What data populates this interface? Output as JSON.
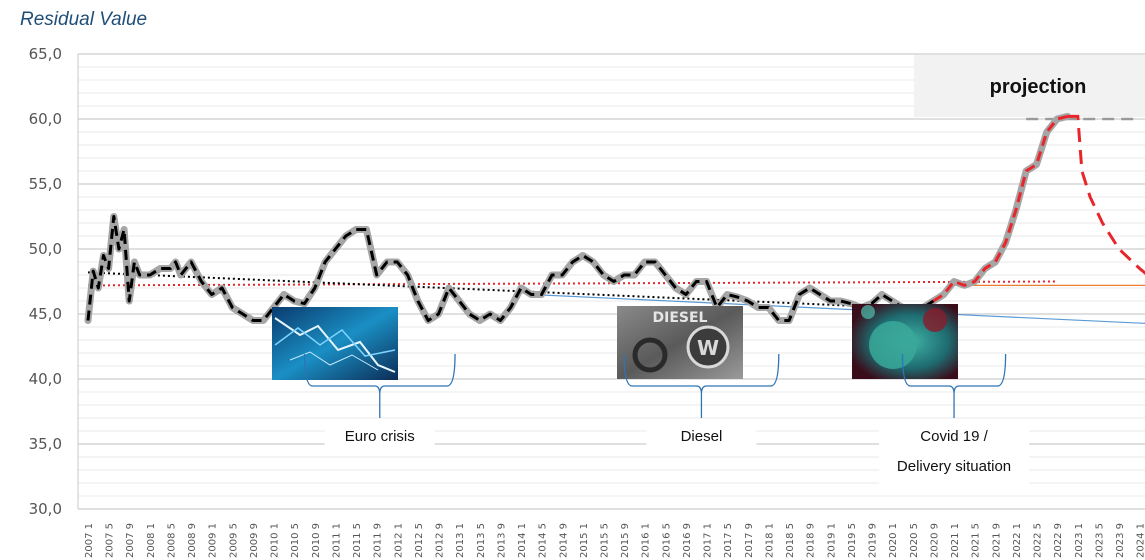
{
  "chart_data": {
    "type": "line",
    "title": "Residual Value",
    "ylim": [
      30,
      65
    ],
    "y_ticks": [
      "65,0",
      "60,0",
      "55,0",
      "50,0",
      "45,0",
      "40,0",
      "35,0",
      "30,0"
    ],
    "y_tick_values": [
      65,
      60,
      55,
      50,
      45,
      40,
      35,
      30
    ],
    "grid": true,
    "x_ticks": [
      "2007 1",
      "2007 5",
      "2007 9",
      "2008 1",
      "2008 5",
      "2008 9",
      "2009 1",
      "2009 5",
      "2009 9",
      "2010 1",
      "2010 5",
      "2010 9",
      "2011 1",
      "2011 5",
      "2011 9",
      "2012 1",
      "2012 5",
      "2012 9",
      "2013 1",
      "2013 5",
      "2013 9",
      "2014 1",
      "2014 5",
      "2014 9",
      "2015 1",
      "2015 5",
      "2015 9",
      "2016 1",
      "2016 5",
      "2016 9",
      "2017 1",
      "2017 5",
      "2017 9",
      "2018 1",
      "2018 5",
      "2018 9",
      "2019 1",
      "2019 5",
      "2019 9",
      "2020 1",
      "2020 5",
      "2020 9",
      "2021 1",
      "2021 5",
      "2021 9",
      "2022 1",
      "2022 5",
      "2022 9",
      "2023 1",
      "2023 5",
      "2023 9",
      "2024 1"
    ],
    "series": [
      {
        "role": "actual",
        "color": "#000000",
        "points": [
          [
            0,
            44.5
          ],
          [
            0.25,
            48.3
          ],
          [
            0.5,
            47.0
          ],
          [
            0.75,
            49.5
          ],
          [
            1,
            48.5
          ],
          [
            1.25,
            52.5
          ],
          [
            1.5,
            50.0
          ],
          [
            1.75,
            51.5
          ],
          [
            2,
            46.0
          ],
          [
            2.25,
            49.0
          ],
          [
            2.5,
            48.0
          ],
          [
            3,
            48.0
          ],
          [
            3.5,
            48.5
          ],
          [
            4,
            48.5
          ],
          [
            4.25,
            49.0
          ],
          [
            4.5,
            48.0
          ],
          [
            5,
            49.0
          ],
          [
            5.5,
            47.5
          ],
          [
            6,
            46.5
          ],
          [
            6.5,
            47.0
          ],
          [
            7,
            45.5
          ],
          [
            7.5,
            45.0
          ],
          [
            8,
            44.5
          ],
          [
            8.5,
            44.5
          ],
          [
            9,
            45.5
          ],
          [
            9.5,
            46.5
          ],
          [
            10,
            46.0
          ],
          [
            10.5,
            45.8
          ],
          [
            11,
            47.0
          ],
          [
            11.5,
            49.0
          ],
          [
            12,
            50.0
          ],
          [
            12.5,
            51.0
          ],
          [
            13,
            51.5
          ],
          [
            13.5,
            51.5
          ],
          [
            14,
            48.0
          ],
          [
            14.5,
            49.0
          ],
          [
            15,
            49.0
          ],
          [
            15.5,
            48.0
          ],
          [
            16,
            46.0
          ],
          [
            16.5,
            44.5
          ],
          [
            17,
            45.0
          ],
          [
            17.5,
            47.0
          ],
          [
            18,
            46.0
          ],
          [
            18.5,
            45.0
          ],
          [
            19,
            44.5
          ],
          [
            19.5,
            45.0
          ],
          [
            20,
            44.5
          ],
          [
            20.5,
            45.5
          ],
          [
            21,
            47.0
          ],
          [
            21.5,
            46.5
          ],
          [
            22,
            46.5
          ],
          [
            22.5,
            48.0
          ],
          [
            23,
            48.0
          ],
          [
            23.5,
            49.0
          ],
          [
            24,
            49.5
          ],
          [
            24.5,
            49.0
          ],
          [
            25,
            48.0
          ],
          [
            25.5,
            47.5
          ],
          [
            26,
            48.0
          ],
          [
            26.5,
            48.0
          ],
          [
            27,
            49.0
          ],
          [
            27.5,
            49.0
          ],
          [
            28,
            48.0
          ],
          [
            28.5,
            47.0
          ],
          [
            29,
            46.5
          ],
          [
            29.5,
            47.5
          ],
          [
            30,
            47.5
          ],
          [
            30.5,
            45.5
          ],
          [
            31,
            46.5
          ],
          [
            31.5,
            46.3
          ],
          [
            32,
            46.0
          ],
          [
            32.5,
            45.5
          ],
          [
            33,
            45.5
          ],
          [
            33.5,
            44.5
          ],
          [
            34,
            44.5
          ],
          [
            34.5,
            46.5
          ],
          [
            35,
            47.0
          ],
          [
            35.5,
            46.5
          ],
          [
            36,
            46.0
          ],
          [
            36.5,
            46.0
          ],
          [
            37,
            45.8
          ],
          [
            37.5,
            45.5
          ],
          [
            38,
            45.8
          ],
          [
            38.5,
            46.5
          ],
          [
            39,
            46.0
          ],
          [
            39.5,
            45.5
          ],
          [
            40,
            45.5
          ],
          [
            40.5,
            45.5
          ],
          [
            41,
            46.0
          ],
          [
            41.5,
            46.5
          ],
          [
            42,
            47.5
          ],
          [
            42.5,
            47.2
          ],
          [
            43,
            47.5
          ],
          [
            43.5,
            48.5
          ],
          [
            44,
            49.0
          ],
          [
            44.5,
            50.5
          ],
          [
            45,
            53.0
          ],
          [
            45.5,
            56.0
          ],
          [
            46,
            56.5
          ],
          [
            46.5,
            59.0
          ],
          [
            47,
            60.0
          ],
          [
            47.5,
            60.2
          ]
        ]
      },
      {
        "role": "projection",
        "color": "#e8252a",
        "points": [
          [
            47.5,
            60.2
          ],
          [
            48.0,
            60.2
          ],
          [
            48.2,
            56.0
          ],
          [
            48.6,
            54.0
          ],
          [
            49.2,
            52.0
          ],
          [
            50.0,
            50.0
          ],
          [
            51.0,
            48.5
          ],
          [
            52.0,
            47.2
          ],
          [
            53.0,
            46.3
          ],
          [
            54.0,
            45.6
          ],
          [
            55.0,
            45.0
          ]
        ]
      },
      {
        "role": "trend-black",
        "color": "#000000",
        "points": [
          [
            0,
            48.2
          ],
          [
            39,
            45.5
          ]
        ]
      },
      {
        "role": "trend-red",
        "color": "#e8252a",
        "points": [
          [
            0,
            47.2
          ],
          [
            47,
            47.5
          ]
        ]
      },
      {
        "role": "level-orange",
        "color": "#ed7d31",
        "points": [
          [
            42,
            47.2
          ],
          [
            55,
            47.2
          ]
        ]
      },
      {
        "role": "trend-blue",
        "color": "#5b9bd5",
        "points": [
          [
            21.5,
            46.5
          ],
          [
            55,
            44.0
          ]
        ]
      },
      {
        "role": "projection-cap",
        "color": "#999999",
        "points": [
          [
            45.5,
            60.0
          ],
          [
            51.0,
            60.0
          ]
        ]
      }
    ],
    "annotations": [
      {
        "label": "Euro crisis",
        "x_start": 10.5,
        "x_end": 17.8
      },
      {
        "label": "Diesel",
        "x_start": 26.0,
        "x_end": 33.5
      },
      {
        "label_lines": [
          "Covid 19 /",
          "Delivery situation"
        ],
        "x_start": 39.5,
        "x_end": 44.5
      }
    ],
    "projection_label": "projection"
  }
}
